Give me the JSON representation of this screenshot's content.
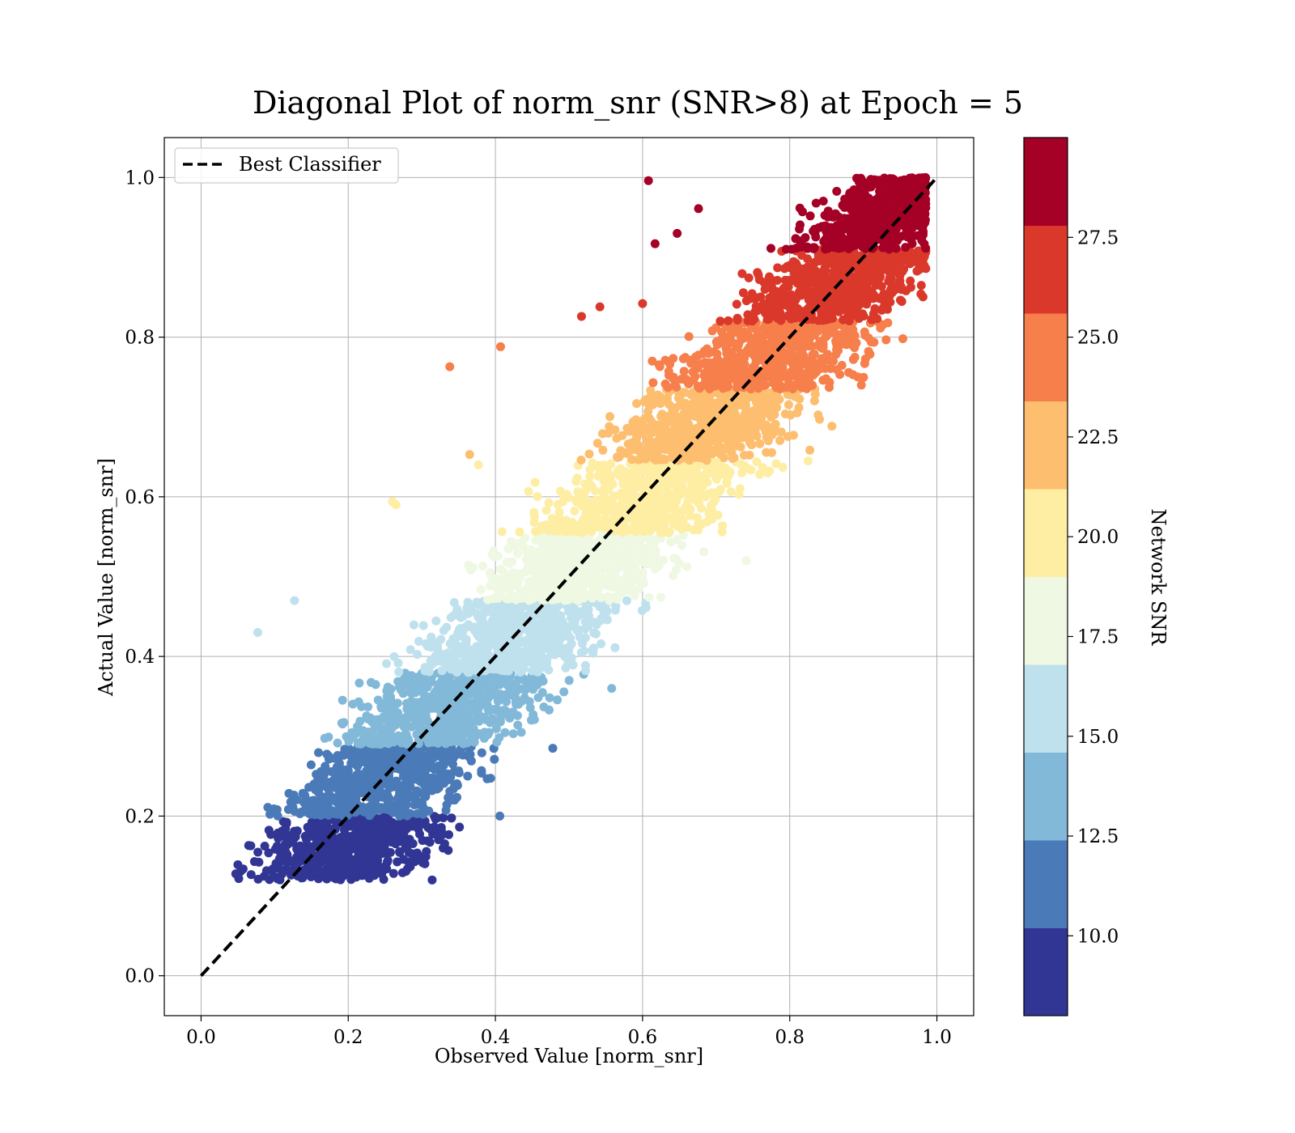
{
  "chart_data": {
    "type": "scatter",
    "title": "Diagonal Plot of norm_snr (SNR>8) at Epoch = 5",
    "xlabel": "Observed Value [norm_snr]",
    "ylabel": "Actual Value [norm_snr]",
    "xlim": [
      -0.05,
      1.05
    ],
    "ylim": [
      -0.05,
      1.05
    ],
    "xticks": [
      "0.0",
      "0.2",
      "0.4",
      "0.6",
      "0.8",
      "1.0"
    ],
    "yticks": [
      "0.0",
      "0.2",
      "0.4",
      "0.6",
      "0.8",
      "1.0"
    ],
    "grid": true,
    "legend": {
      "placement": "upper-left",
      "entries": [
        "Best Classifier"
      ]
    },
    "reference_line": {
      "name": "Best Classifier",
      "style": "dashed",
      "color": "#000000",
      "x": [
        0.0,
        1.0
      ],
      "y": [
        0.0,
        1.0
      ]
    },
    "colorbar": {
      "label": "Network SNR",
      "range": [
        8,
        30
      ],
      "tick_values": [
        10.0,
        12.5,
        15.0,
        17.5,
        20.0,
        22.5,
        25.0,
        27.5
      ],
      "tick_labels": [
        "10.0",
        "12.5",
        "15.0",
        "17.5",
        "20.0",
        "22.5",
        "25.0",
        "27.5"
      ],
      "colors": [
        "#313695",
        "#4a7ab7",
        "#83b9d8",
        "#bfe1ed",
        "#eff8e2",
        "#feeea4",
        "#fdbe70",
        "#f67f4b",
        "#da382a",
        "#a50026"
      ]
    },
    "bands": [
      {
        "snr_range": [
          8,
          10.2
        ],
        "actual_range": [
          0.12,
          0.2
        ],
        "observed_center_offset": 0.04,
        "observed_spread": 0.115,
        "color": "#313695"
      },
      {
        "snr_range": [
          10.2,
          12.4
        ],
        "actual_range": [
          0.2,
          0.29
        ],
        "observed_center_offset": 0.0,
        "observed_spread": 0.12,
        "color": "#4a7ab7"
      },
      {
        "snr_range": [
          12.4,
          14.6
        ],
        "actual_range": [
          0.29,
          0.38
        ],
        "observed_center_offset": 0.0,
        "observed_spread": 0.125,
        "color": "#83b9d8"
      },
      {
        "snr_range": [
          14.6,
          16.8
        ],
        "actual_range": [
          0.38,
          0.47
        ],
        "observed_center_offset": 0.0,
        "observed_spread": 0.125,
        "color": "#bfe1ed"
      },
      {
        "snr_range": [
          16.8,
          19.0
        ],
        "actual_range": [
          0.47,
          0.555
        ],
        "observed_center_offset": 0.0,
        "observed_spread": 0.125,
        "color": "#eff8e2"
      },
      {
        "snr_range": [
          19.0,
          21.2
        ],
        "actual_range": [
          0.555,
          0.645
        ],
        "observed_center_offset": 0.0,
        "observed_spread": 0.125,
        "color": "#feeea4"
      },
      {
        "snr_range": [
          21.2,
          23.4
        ],
        "actual_range": [
          0.645,
          0.735
        ],
        "observed_center_offset": 0.0,
        "observed_spread": 0.125,
        "color": "#fdbe70"
      },
      {
        "snr_range": [
          23.4,
          25.6
        ],
        "actual_range": [
          0.735,
          0.82
        ],
        "observed_center_offset": 0.0,
        "observed_spread": 0.125,
        "color": "#f67f4b"
      },
      {
        "snr_range": [
          25.6,
          27.8
        ],
        "actual_range": [
          0.82,
          0.91
        ],
        "observed_center_offset": 0.0,
        "observed_spread": 0.12,
        "color": "#da382a"
      },
      {
        "snr_range": [
          27.8,
          30
        ],
        "actual_range": [
          0.91,
          1.0
        ],
        "observed_center_offset": -0.025,
        "observed_spread": 0.095,
        "color": "#a50026"
      }
    ],
    "outliers": [
      {
        "x": 0.608,
        "y": 0.996,
        "color": "#a50026"
      },
      {
        "x": 0.676,
        "y": 0.961,
        "color": "#a50026"
      },
      {
        "x": 0.617,
        "y": 0.917,
        "color": "#a50026"
      },
      {
        "x": 0.647,
        "y": 0.93,
        "color": "#a50026"
      },
      {
        "x": 0.517,
        "y": 0.826,
        "color": "#da382a"
      },
      {
        "x": 0.542,
        "y": 0.838,
        "color": "#da382a"
      },
      {
        "x": 0.6,
        "y": 0.842,
        "color": "#da382a"
      },
      {
        "x": 0.338,
        "y": 0.763,
        "color": "#f67f4b"
      },
      {
        "x": 0.407,
        "y": 0.788,
        "color": "#f67f4b"
      },
      {
        "x": 0.365,
        "y": 0.653,
        "color": "#fdbe70"
      },
      {
        "x": 0.26,
        "y": 0.594,
        "color": "#feeea4"
      },
      {
        "x": 0.265,
        "y": 0.59,
        "color": "#feeea4"
      },
      {
        "x": 0.377,
        "y": 0.64,
        "color": "#feeea4"
      },
      {
        "x": 0.127,
        "y": 0.47,
        "color": "#bfe1ed"
      },
      {
        "x": 0.077,
        "y": 0.43,
        "color": "#bfe1ed"
      },
      {
        "x": 0.406,
        "y": 0.2,
        "color": "#4a7ab7"
      },
      {
        "x": 0.314,
        "y": 0.12,
        "color": "#313695"
      },
      {
        "x": 0.478,
        "y": 0.285,
        "color": "#4a7ab7"
      },
      {
        "x": 0.558,
        "y": 0.36,
        "color": "#83b9d8"
      },
      {
        "x": 0.741,
        "y": 0.52,
        "color": "#eff8e2"
      },
      {
        "x": 0.825,
        "y": 0.645,
        "color": "#feeea4"
      }
    ]
  }
}
